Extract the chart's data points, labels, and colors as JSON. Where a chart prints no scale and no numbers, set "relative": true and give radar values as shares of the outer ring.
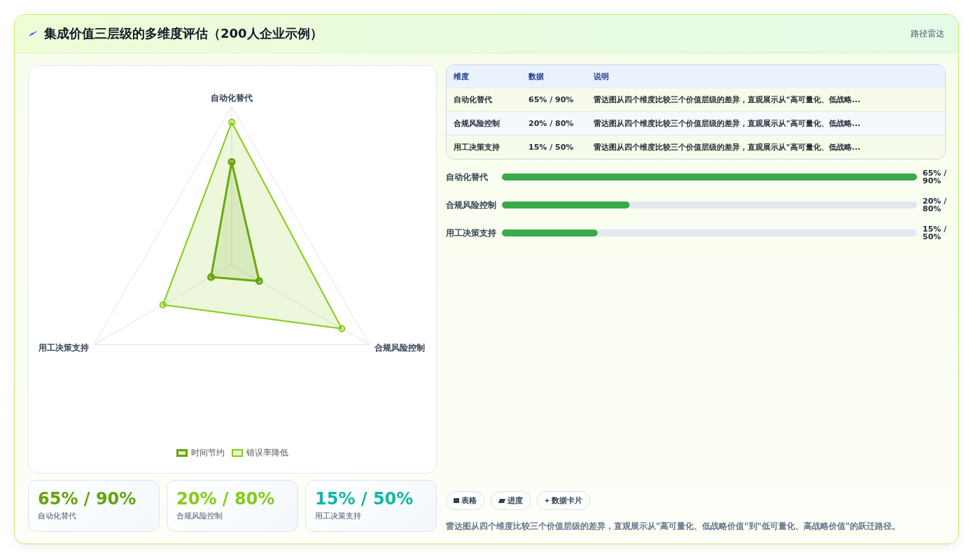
{
  "chart_data": [
    {
      "type": "radar",
      "title": "集成价值三层级的多维度评估（200人企业示例）",
      "annotations": [
        "路径雷达"
      ],
      "categories": [
        "自动化替代",
        "合规风险控制",
        "用工决策支持"
      ],
      "series": [
        {
          "name": "时间节约",
          "color": "#65a30d",
          "values": [
            0.65,
            0.2,
            0.15
          ]
        },
        {
          "name": "错误率降低",
          "color": "#84cc16",
          "values": [
            0.9,
            0.8,
            0.5
          ]
        }
      ],
      "relative": true,
      "grid": true,
      "legend": "bottom",
      "marker": "circle"
    },
    {
      "type": "other",
      "annotations": [
        "维度",
        "数据",
        "说明",
        "自动化替代",
        "65% / 90%",
        "雷达图从四个维度比较三个价值层级的差异，直观展示从\"高可量化、低战略...",
        "合规风险控制",
        "20% / 80%",
        "雷达图从四个维度比较三个价值层级的差异，直观展示从\"高可量化、低战略...",
        "用工决策支持",
        "15% / 50%",
        "雷达图从四个维度比较三个价值层级的差异，直观展示从\"高可量化、低战略..."
      ]
    },
    {
      "type": "bar",
      "orientation": "horizontal",
      "categories": [
        "自动化替代",
        "合规风险控制",
        "用工决策支持"
      ],
      "values": [
        65,
        20,
        15
      ],
      "color": "#3aab4c",
      "value_labels": [
        "65% / 90%",
        "20% / 80%",
        "15% / 50%"
      ]
    },
    {
      "type": "other",
      "annotations": [
        "65% / 90%",
        "自动化替代",
        "20% / 80%",
        "合规风险控制",
        "15% / 50%",
        "用工决策支持"
      ],
      "colors": [
        "#65a30d",
        "#84cc16",
        "#14b8a6"
      ]
    },
    {
      "type": "other",
      "annotations": [
        "表格",
        "进度",
        "数据卡片",
        "雷达图从四个维度比较三个价值层级的差异，直观展示从\"高可量化、低战略价值\"到\"低可量化、高战略价值\"的跃迁路径。"
      ]
    }
  ]
}
